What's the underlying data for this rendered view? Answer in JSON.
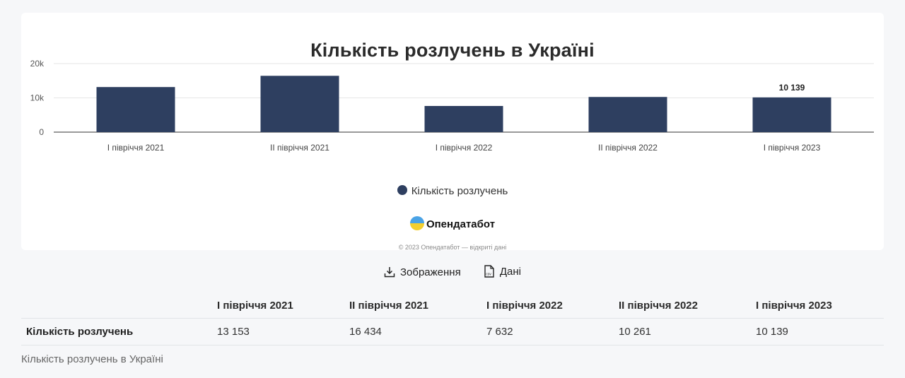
{
  "chart_data": {
    "type": "bar",
    "title": "Кількість розлучень в Україні",
    "categories": [
      "I півріччя 2021",
      "II півріччя 2021",
      "I півріччя 2022",
      "II півріччя 2022",
      "I півріччя 2023"
    ],
    "series": [
      {
        "name": "Кількість розлучень",
        "values": [
          13153,
          16434,
          7632,
          10261,
          10139
        ],
        "color": "#2e3f60"
      }
    ],
    "y_ticks": [
      "0",
      "10k",
      "20k"
    ],
    "ylim": [
      0,
      20000
    ],
    "data_labels": [
      {
        "category_index": 4,
        "text": "10 139"
      }
    ],
    "grid": true,
    "legend_position": "bottom"
  },
  "brand": {
    "name": "Опендатабот"
  },
  "copyright": "© 2023 Опендатабот — відкриті дані",
  "actions": {
    "image_label": "Зображення",
    "data_label": "Дані"
  },
  "table": {
    "headers": [
      "",
      "I півріччя 2021",
      "II півріччя 2021",
      "I півріччя 2022",
      "II півріччя 2022",
      "I півріччя 2023"
    ],
    "rows": [
      [
        "Кількість розлучень",
        "13 153",
        "16 434",
        "7 632",
        "10 261",
        "10 139"
      ]
    ]
  },
  "caption": "Кількість розлучень в Україні"
}
